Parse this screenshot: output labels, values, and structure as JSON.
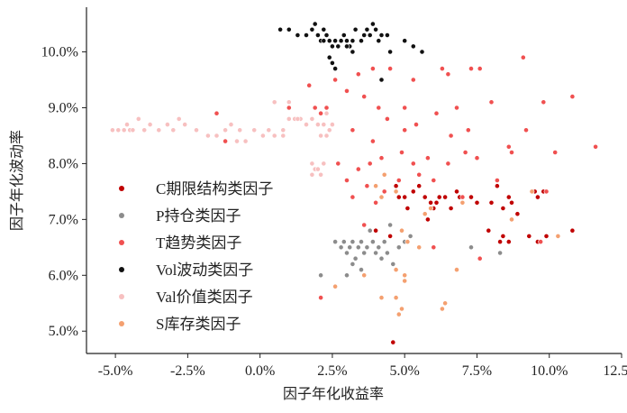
{
  "chart_data": {
    "type": "scatter",
    "title": "",
    "xlabel": "因子年化收益率",
    "ylabel": "因子年化波动率",
    "xlim": [
      -6.0,
      12.5
    ],
    "ylim": [
      4.6,
      10.8
    ],
    "xticks": [
      -5.0,
      -2.5,
      0.0,
      2.5,
      5.0,
      7.5,
      10.0,
      12.5
    ],
    "xtick_labels": [
      "-5.0%",
      "-2.5%",
      "0.0%",
      "2.5%",
      "5.0%",
      "7.5%",
      "10.0%",
      "12.5%"
    ],
    "yticks": [
      5.0,
      6.0,
      7.0,
      8.0,
      9.0,
      10.0
    ],
    "ytick_labels": [
      "5.0%",
      "6.0%",
      "7.0%",
      "8.0%",
      "9.0%",
      "10.0%"
    ],
    "legend_position": "center-left",
    "series": [
      {
        "name": "C期限结构类因子",
        "color": "#c00000",
        "points": [
          [
            4.7,
            7.6
          ],
          [
            4.8,
            7.4
          ],
          [
            5.0,
            7.4
          ],
          [
            5.1,
            7.2
          ],
          [
            5.3,
            7.5
          ],
          [
            5.5,
            7.6
          ],
          [
            5.7,
            7.4
          ],
          [
            5.8,
            7.0
          ],
          [
            5.9,
            7.3
          ],
          [
            6.0,
            7.2
          ],
          [
            6.1,
            7.3
          ],
          [
            6.2,
            7.4
          ],
          [
            6.4,
            7.4
          ],
          [
            6.6,
            7.2
          ],
          [
            6.8,
            7.5
          ],
          [
            6.9,
            7.4
          ],
          [
            7.0,
            7.3
          ],
          [
            7.3,
            7.4
          ],
          [
            7.5,
            7.3
          ],
          [
            8.0,
            7.3
          ],
          [
            8.2,
            7.6
          ],
          [
            8.4,
            7.2
          ],
          [
            8.6,
            7.4
          ],
          [
            8.7,
            7.3
          ],
          [
            8.9,
            7.1
          ],
          [
            9.5,
            7.5
          ],
          [
            9.6,
            7.4
          ],
          [
            9.8,
            7.5
          ],
          [
            7.9,
            6.8
          ],
          [
            8.3,
            6.6
          ],
          [
            8.4,
            6.7
          ],
          [
            8.6,
            6.6
          ],
          [
            9.3,
            6.7
          ],
          [
            9.6,
            6.6
          ],
          [
            9.9,
            6.7
          ],
          [
            10.8,
            6.8
          ],
          [
            4.0,
            6.8
          ],
          [
            4.5,
            6.7
          ],
          [
            4.6,
            4.8
          ]
        ]
      },
      {
        "name": "P持仓类因子",
        "color": "#8c8c8c",
        "points": [
          [
            2.6,
            6.6
          ],
          [
            2.8,
            6.5
          ],
          [
            2.9,
            6.6
          ],
          [
            3.0,
            6.4
          ],
          [
            3.1,
            6.5
          ],
          [
            3.2,
            6.6
          ],
          [
            3.3,
            6.3
          ],
          [
            3.4,
            6.5
          ],
          [
            3.5,
            6.6
          ],
          [
            3.6,
            6.4
          ],
          [
            3.7,
            6.5
          ],
          [
            3.8,
            6.8
          ],
          [
            3.9,
            6.6
          ],
          [
            4.0,
            6.4
          ],
          [
            4.1,
            6.5
          ],
          [
            4.2,
            6.3
          ],
          [
            4.3,
            6.6
          ],
          [
            4.4,
            6.4
          ],
          [
            4.5,
            6.9
          ],
          [
            4.6,
            6.2
          ],
          [
            4.8,
            6.5
          ],
          [
            5.0,
            6.6
          ],
          [
            5.2,
            6.7
          ],
          [
            3.0,
            6.0
          ],
          [
            3.2,
            6.2
          ],
          [
            2.1,
            6.0
          ],
          [
            3.5,
            6.1
          ],
          [
            7.3,
            6.5
          ],
          [
            8.3,
            6.4
          ]
        ]
      },
      {
        "name": "T趋势类因子",
        "color": "#f05050",
        "points": [
          [
            -1.5,
            8.9
          ],
          [
            -1.2,
            8.4
          ],
          [
            1.0,
            9.0
          ],
          [
            1.7,
            9.4
          ],
          [
            1.9,
            9.0
          ],
          [
            2.1,
            8.9
          ],
          [
            2.3,
            9.0
          ],
          [
            2.6,
            9.5
          ],
          [
            2.5,
            8.7
          ],
          [
            3.0,
            9.3
          ],
          [
            3.4,
            9.6
          ],
          [
            3.9,
            9.7
          ],
          [
            4.5,
            9.7
          ],
          [
            5.3,
            9.5
          ],
          [
            6.3,
            9.7
          ],
          [
            6.5,
            9.6
          ],
          [
            7.3,
            9.7
          ],
          [
            7.6,
            9.7
          ],
          [
            9.1,
            9.9
          ],
          [
            3.6,
            9.2
          ],
          [
            4.1,
            9.0
          ],
          [
            4.4,
            8.8
          ],
          [
            5.0,
            9.0
          ],
          [
            5.4,
            8.7
          ],
          [
            6.1,
            8.9
          ],
          [
            6.8,
            9.0
          ],
          [
            8.0,
            9.1
          ],
          [
            9.8,
            9.1
          ],
          [
            10.8,
            9.2
          ],
          [
            3.2,
            8.6
          ],
          [
            3.9,
            8.4
          ],
          [
            5.0,
            8.6
          ],
          [
            6.6,
            8.5
          ],
          [
            7.2,
            8.6
          ],
          [
            8.6,
            8.3
          ],
          [
            9.2,
            8.6
          ],
          [
            2.7,
            8.0
          ],
          [
            3.4,
            7.9
          ],
          [
            3.8,
            8.0
          ],
          [
            4.2,
            8.1
          ],
          [
            4.9,
            8.2
          ],
          [
            5.3,
            8.0
          ],
          [
            5.8,
            8.1
          ],
          [
            6.5,
            8.0
          ],
          [
            7.1,
            8.2
          ],
          [
            7.5,
            8.1
          ],
          [
            8.7,
            8.2
          ],
          [
            10.2,
            8.2
          ],
          [
            11.6,
            8.3
          ],
          [
            3.0,
            7.7
          ],
          [
            3.7,
            7.6
          ],
          [
            4.3,
            7.5
          ],
          [
            4.8,
            7.7
          ],
          [
            5.5,
            7.8
          ],
          [
            6.0,
            7.7
          ],
          [
            7.0,
            7.4
          ],
          [
            8.2,
            7.7
          ],
          [
            9.9,
            7.5
          ],
          [
            3.2,
            7.4
          ],
          [
            4.0,
            7.3
          ],
          [
            3.6,
            6.9
          ],
          [
            9.7,
            6.6
          ],
          [
            10.3,
            6.7
          ],
          [
            6.0,
            6.5
          ],
          [
            7.6,
            6.3
          ],
          [
            2.1,
            5.6
          ]
        ]
      },
      {
        "name": "Vol波动类因子",
        "color": "#111111",
        "points": [
          [
            0.7,
            10.4
          ],
          [
            1.0,
            10.4
          ],
          [
            1.3,
            10.3
          ],
          [
            1.6,
            10.3
          ],
          [
            1.8,
            10.4
          ],
          [
            1.9,
            10.5
          ],
          [
            2.0,
            10.3
          ],
          [
            2.1,
            10.2
          ],
          [
            2.2,
            10.4
          ],
          [
            2.3,
            10.3
          ],
          [
            2.4,
            10.2
          ],
          [
            2.5,
            10.1
          ],
          [
            2.6,
            10.2
          ],
          [
            2.7,
            10.1
          ],
          [
            2.8,
            10.2
          ],
          [
            2.9,
            10.3
          ],
          [
            3.0,
            10.2
          ],
          [
            3.1,
            10.1
          ],
          [
            3.2,
            10.2
          ],
          [
            3.3,
            10.4
          ],
          [
            3.5,
            10.2
          ],
          [
            3.6,
            10.3
          ],
          [
            3.7,
            10.4
          ],
          [
            3.8,
            10.3
          ],
          [
            3.9,
            10.5
          ],
          [
            4.0,
            10.4
          ],
          [
            4.1,
            10.2
          ],
          [
            4.2,
            10.3
          ],
          [
            4.4,
            10.3
          ],
          [
            4.5,
            10.0
          ],
          [
            2.4,
            9.9
          ],
          [
            2.5,
            9.8
          ],
          [
            2.6,
            9.7
          ],
          [
            3.2,
            10.0
          ],
          [
            3.0,
            10.1
          ],
          [
            5.0,
            10.2
          ],
          [
            5.3,
            10.1
          ],
          [
            5.6,
            10.0
          ],
          [
            4.2,
            9.5
          ],
          [
            2.2,
            10.2
          ]
        ]
      },
      {
        "name": "Val价值类因子",
        "color": "#f7c0c0",
        "points": [
          [
            -5.1,
            8.6
          ],
          [
            -4.9,
            8.6
          ],
          [
            -4.7,
            8.6
          ],
          [
            -4.6,
            8.7
          ],
          [
            -4.5,
            8.6
          ],
          [
            -4.4,
            8.6
          ],
          [
            -4.2,
            8.8
          ],
          [
            -4.0,
            8.6
          ],
          [
            -3.8,
            8.7
          ],
          [
            -3.5,
            8.6
          ],
          [
            -3.2,
            8.7
          ],
          [
            -3.0,
            8.6
          ],
          [
            -2.8,
            8.8
          ],
          [
            -2.6,
            8.7
          ],
          [
            -2.2,
            8.6
          ],
          [
            -1.8,
            8.5
          ],
          [
            -1.5,
            8.5
          ],
          [
            -1.2,
            8.6
          ],
          [
            -1.0,
            8.7
          ],
          [
            -0.7,
            8.6
          ],
          [
            -0.5,
            8.4
          ],
          [
            -0.2,
            8.6
          ],
          [
            0.1,
            8.5
          ],
          [
            0.3,
            8.6
          ],
          [
            0.5,
            8.5
          ],
          [
            0.8,
            8.6
          ],
          [
            1.0,
            8.8
          ],
          [
            1.2,
            8.8
          ],
          [
            1.4,
            8.8
          ],
          [
            1.6,
            8.7
          ],
          [
            1.8,
            8.8
          ],
          [
            2.0,
            8.7
          ],
          [
            2.2,
            8.7
          ],
          [
            2.4,
            8.6
          ],
          [
            0.5,
            9.1
          ],
          [
            1.0,
            9.1
          ],
          [
            1.3,
            8.8
          ],
          [
            2.1,
            8.5
          ],
          [
            2.3,
            8.5
          ],
          [
            2.5,
            8.7
          ],
          [
            1.8,
            7.8
          ],
          [
            1.9,
            7.9
          ],
          [
            2.0,
            7.9
          ],
          [
            2.1,
            7.8
          ],
          [
            2.2,
            8.0
          ],
          [
            1.8,
            8.0
          ],
          [
            0.8,
            8.5
          ],
          [
            -0.8,
            8.4
          ],
          [
            2.3,
            8.9
          ]
        ]
      },
      {
        "name": "S库存类因子",
        "color": "#f4a070",
        "points": [
          [
            4.3,
            7.8
          ],
          [
            4.0,
            7.6
          ],
          [
            4.7,
            7.5
          ],
          [
            4.2,
            7.4
          ],
          [
            5.7,
            7.1
          ],
          [
            5.9,
            7.2
          ],
          [
            7.0,
            7.3
          ],
          [
            4.9,
            6.8
          ],
          [
            5.1,
            6.6
          ],
          [
            5.5,
            6.5
          ],
          [
            8.7,
            7.0
          ],
          [
            9.4,
            7.5
          ],
          [
            10.3,
            6.7
          ],
          [
            6.8,
            6.1
          ],
          [
            5.0,
            6.0
          ],
          [
            4.7,
            5.6
          ],
          [
            4.9,
            5.4
          ],
          [
            5.0,
            5.9
          ],
          [
            4.2,
            5.6
          ],
          [
            4.8,
            5.3
          ],
          [
            6.3,
            5.4
          ],
          [
            6.4,
            5.5
          ],
          [
            3.6,
            6.0
          ],
          [
            2.6,
            5.8
          ],
          [
            4.7,
            6.1
          ]
        ]
      }
    ]
  }
}
